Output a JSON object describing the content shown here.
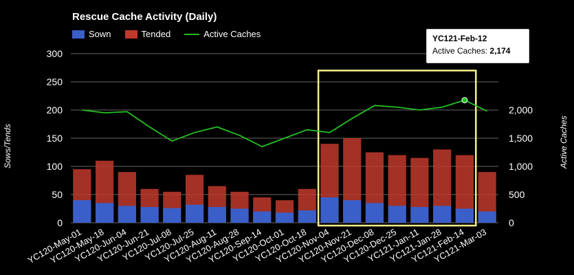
{
  "chart_data": {
    "type": "bar",
    "title": "Rescue Cache Activity (Daily)",
    "ylabel": "Sows/Tends",
    "y2label": "Active Caches",
    "ylim": [
      0,
      300
    ],
    "y2lim": [
      0,
      3000
    ],
    "yticks": [
      0,
      50,
      100,
      150,
      200,
      250,
      300
    ],
    "y2ticks": [
      "0",
      "500",
      "1,000",
      "1,500",
      "2,000"
    ],
    "grid": true,
    "legend_position": "top-left",
    "x_tick_labels": [
      "YC120-May-01",
      "YC120-May-18",
      "YC120-Jun-04",
      "YC120-Jun-21",
      "YC120-Jul-08",
      "YC120-Jul-25",
      "YC120-Aug-11",
      "YC120-Aug-28",
      "YC120-Sep-14",
      "YC120-Oct-01",
      "YC120-Oct-18",
      "YC120-Nov-04",
      "YC120-Nov-21",
      "YC120-Dec-08",
      "YC120-Dec-25",
      "YC121-Jan-11",
      "YC121-Jan-28",
      "YC121-Feb-14",
      "YC121-Mar-03"
    ],
    "categories": [
      "YC120-May-01",
      "YC120-May-18",
      "YC120-Jun-04",
      "YC120-Jun-21",
      "YC120-Jul-08",
      "YC120-Jul-25",
      "YC120-Aug-11",
      "YC120-Aug-28",
      "YC120-Sep-14",
      "YC120-Oct-01",
      "YC120-Oct-18",
      "YC120-Nov-04",
      "YC120-Nov-21",
      "YC120-Dec-08",
      "YC120-Dec-25",
      "YC121-Jan-11",
      "YC121-Jan-28",
      "YC121-Feb-14",
      "YC121-Mar-03"
    ],
    "series": [
      {
        "name": "Sown",
        "type": "bar",
        "axis": "left",
        "color": "#3b5fc8",
        "values": [
          40,
          35,
          30,
          28,
          26,
          32,
          28,
          25,
          20,
          18,
          22,
          45,
          40,
          35,
          30,
          28,
          30,
          25,
          20
        ]
      },
      {
        "name": "Tended",
        "type": "bar",
        "axis": "left",
        "color": "#c0392b",
        "values": [
          95,
          110,
          90,
          60,
          55,
          85,
          65,
          55,
          45,
          40,
          60,
          140,
          150,
          125,
          120,
          115,
          130,
          120,
          90
        ]
      },
      {
        "name": "Active Caches",
        "type": "line",
        "axis": "right",
        "color": "#22c022",
        "values": [
          2000,
          1950,
          1970,
          1700,
          1450,
          1600,
          1700,
          1550,
          1350,
          1500,
          1650,
          1600,
          1850,
          2080,
          2050,
          2000,
          2050,
          2174,
          1980
        ]
      }
    ],
    "highlight_range": [
      "YC120-Nov-04",
      "YC121-Feb-14"
    ],
    "tooltip": {
      "date": "YC121-Feb-12",
      "label": "Active Caches:",
      "value": "2,174"
    }
  },
  "legend": {
    "sown": "Sown",
    "tended": "Tended",
    "active": "Active Caches"
  },
  "colors": {
    "sown": "#3b5fc8",
    "tended": "#c0392b",
    "active": "#22c022",
    "highlight": "#f2f28a"
  }
}
